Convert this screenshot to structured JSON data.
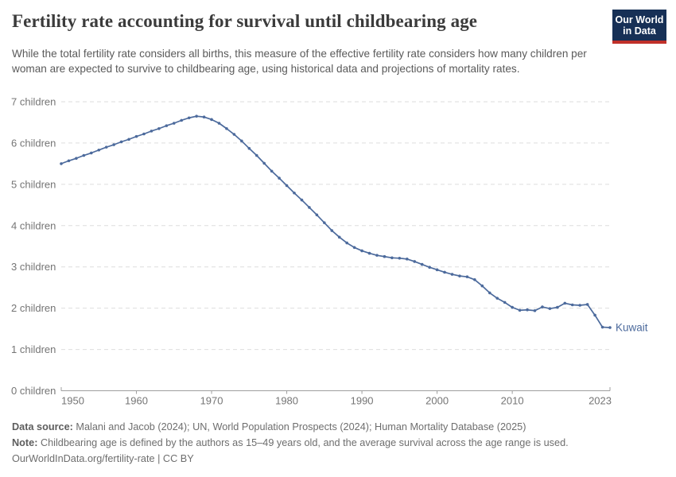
{
  "header": {
    "title": "Fertility rate accounting for survival until childbearing age",
    "subtitle": "While the total fertility rate considers all births, this measure of the effective fertility rate considers how many children per woman are expected to survive to childbearing age, using historical data and projections of mortality rates.",
    "logo": {
      "line1": "Our World",
      "line2": "in Data",
      "bg_color": "#173056",
      "accent_color": "#c0302a"
    }
  },
  "chart_data": {
    "type": "line",
    "title": "Fertility rate accounting for survival until childbearing age",
    "entity": "Kuwait",
    "end_label": "Kuwait",
    "line_color": "#4C6A9C",
    "grid": "horizontal-dashed",
    "legend_position": "end-of-line",
    "marker": "circle",
    "xlim": [
      1950,
      2023
    ],
    "ylim": [
      0,
      7
    ],
    "xticks": [
      1950,
      1960,
      1970,
      1980,
      1990,
      2000,
      2010,
      2023
    ],
    "ytick_labels": [
      "0 children",
      "1 children",
      "2 children",
      "3 children",
      "4 children",
      "5 children",
      "6 children",
      "7 children"
    ],
    "x": [
      1950,
      1951,
      1952,
      1953,
      1954,
      1955,
      1956,
      1957,
      1958,
      1959,
      1960,
      1961,
      1962,
      1963,
      1964,
      1965,
      1966,
      1967,
      1968,
      1969,
      1970,
      1971,
      1972,
      1973,
      1974,
      1975,
      1976,
      1977,
      1978,
      1979,
      1980,
      1981,
      1982,
      1983,
      1984,
      1985,
      1986,
      1987,
      1988,
      1989,
      1990,
      1991,
      1992,
      1993,
      1994,
      1995,
      1996,
      1997,
      1998,
      1999,
      2000,
      2001,
      2002,
      2003,
      2004,
      2005,
      2006,
      2007,
      2008,
      2009,
      2010,
      2011,
      2012,
      2013,
      2014,
      2015,
      2016,
      2017,
      2018,
      2019,
      2020,
      2021,
      2022,
      2023
    ],
    "series": [
      {
        "name": "Kuwait",
        "color": "#4C6A9C",
        "values": [
          5.5,
          5.57,
          5.63,
          5.7,
          5.76,
          5.83,
          5.9,
          5.96,
          6.03,
          6.09,
          6.16,
          6.22,
          6.29,
          6.35,
          6.42,
          6.48,
          6.55,
          6.61,
          6.65,
          6.63,
          6.57,
          6.48,
          6.35,
          6.21,
          6.05,
          5.87,
          5.7,
          5.51,
          5.32,
          5.15,
          4.97,
          4.79,
          4.62,
          4.44,
          4.26,
          4.07,
          3.88,
          3.72,
          3.58,
          3.47,
          3.39,
          3.33,
          3.28,
          3.25,
          3.22,
          3.21,
          3.19,
          3.13,
          3.06,
          2.99,
          2.93,
          2.87,
          2.82,
          2.78,
          2.76,
          2.69,
          2.54,
          2.37,
          2.24,
          2.14,
          2.02,
          1.95,
          1.96,
          1.94,
          2.03,
          1.99,
          2.02,
          2.12,
          2.08,
          2.07,
          2.09,
          1.83,
          1.54,
          1.53
        ]
      }
    ]
  },
  "footer": {
    "data_source_label": "Data source:",
    "data_source_text": "Malani and Jacob (2024); UN, World Population Prospects (2024); Human Mortality Database (2025)",
    "note_label": "Note:",
    "note_text": "Childbearing age is defined by the authors as 15–49 years old, and the average survival across the age range is used.",
    "license_text": "OurWorldInData.org/fertility-rate | CC BY"
  },
  "colors": {
    "title": "#3b3b3b",
    "subtitle": "#5a5a5a",
    "axis_text": "#757575",
    "gridline": "#dedede",
    "axis_line": "#9e9e9e",
    "series": "#4C6A9C"
  }
}
